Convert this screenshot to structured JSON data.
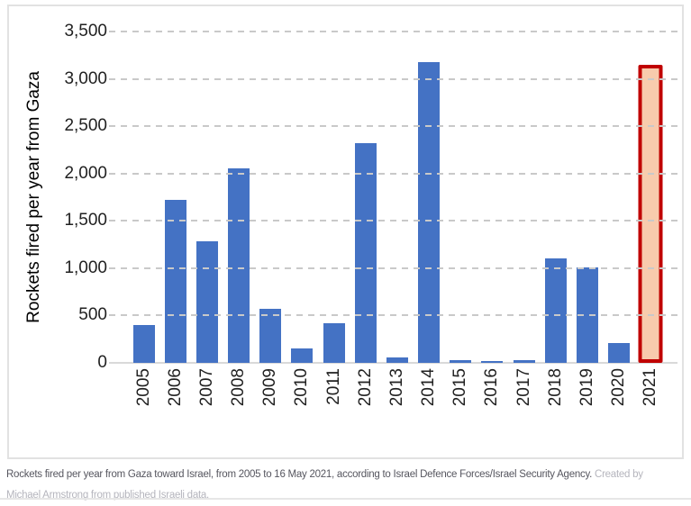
{
  "chart_data": {
    "type": "bar",
    "title": "",
    "ylabel": "Rockets fired per year from Gaza",
    "xlabel": "",
    "categories": [
      "2005",
      "2006",
      "2007",
      "2008",
      "2009",
      "2010",
      "2011",
      "2012",
      "2013",
      "2014",
      "2015",
      "2016",
      "2017",
      "2018",
      "2019",
      "2020",
      "2021"
    ],
    "values": [
      400,
      1720,
      1280,
      2050,
      570,
      150,
      420,
      2320,
      55,
      3175,
      30,
      15,
      25,
      1100,
      1010,
      205,
      3150
    ],
    "ylim": [
      0,
      3500
    ],
    "yticks": [
      0,
      500,
      1000,
      1500,
      2000,
      2500,
      3000,
      3500
    ],
    "ytick_labels": [
      "0",
      "500",
      "1,000",
      "1,500",
      "2,000",
      "2,500",
      "3,000",
      "3,500"
    ],
    "grid": "horizontal-dashed",
    "legend": "none",
    "bar_color": "#4472C4",
    "highlight": {
      "category": "2021",
      "fill": "#F8CBAD",
      "border": "#C00000"
    }
  },
  "caption": {
    "main": "Rockets fired per year from Gaza toward Israel, from 2005 to 16 May 2021, according to Israel Defence Forces/Israel Security Agency.",
    "credit_start": "Created by",
    "credit_rest": "Michael Armstrong from published Israeli data."
  },
  "colors": {
    "frame_border": "#E2E2E2",
    "gridline": "#C9C9C9",
    "axis_line": "#D9D9D9",
    "tick_text": "#212121",
    "caption_text": "#56565F",
    "caption_credit": "#B5B5BD"
  }
}
